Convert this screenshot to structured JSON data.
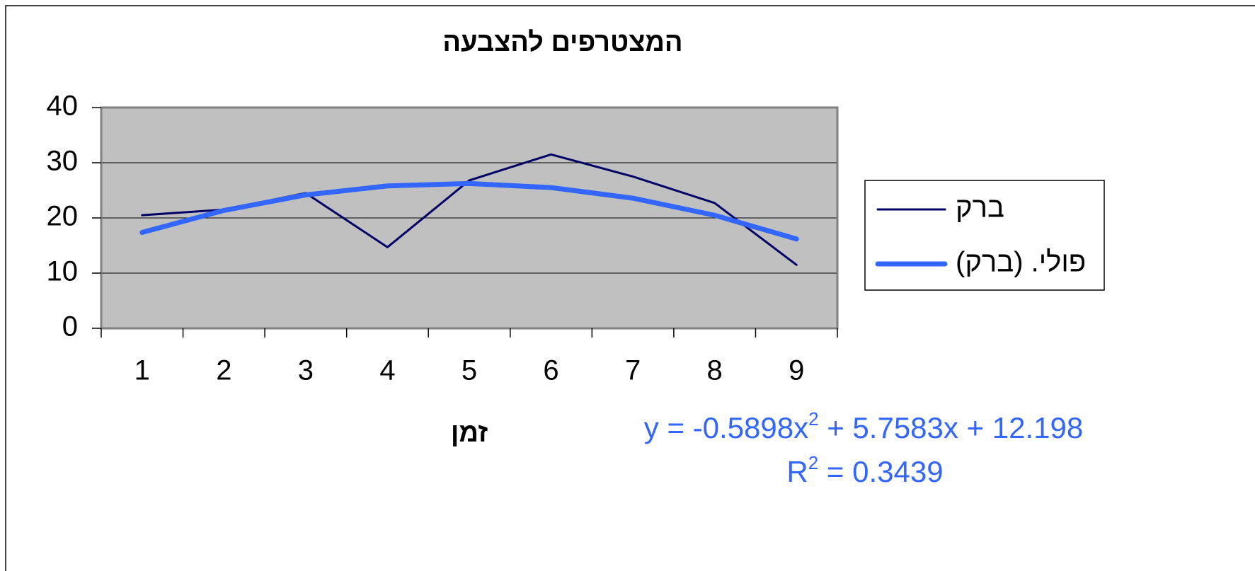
{
  "chart_data": {
    "type": "line",
    "title": "המצטרפים להצבעה",
    "x_label": "זמן",
    "categories": [
      "1",
      "2",
      "3",
      "4",
      "5",
      "6",
      "7",
      "8",
      "9"
    ],
    "series": [
      {
        "name": "ברק",
        "color": "#000066",
        "values": [
          20.5,
          21.5,
          24.5,
          14.7,
          26.8,
          31.5,
          27.5,
          22.7,
          11.5
        ]
      },
      {
        "name": "פולי. (ברק)",
        "color": "#3366ff",
        "values": [
          17.37,
          21.36,
          24.17,
          25.8,
          26.24,
          25.5,
          23.58,
          20.48,
          16.19
        ]
      }
    ],
    "ylim": [
      0,
      40
    ],
    "yticks": [
      0,
      10,
      20,
      30,
      40
    ],
    "grid": true,
    "legend": "right",
    "equation": [
      "y = -0.5898x",
      "2",
      " + 5.7583x  + 12.198"
    ],
    "r_squared": [
      "R",
      "2",
      " = 0.3439"
    ]
  }
}
